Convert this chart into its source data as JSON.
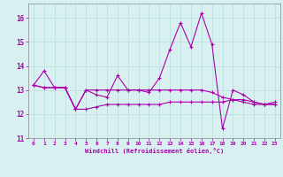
{
  "xlabel": "Windchill (Refroidissement éolien,°C)",
  "background_color": "#d8f0f0",
  "grid_color": "#b8dede",
  "line_color": "#aa00aa",
  "xlim": [
    -0.5,
    23.5
  ],
  "ylim": [
    11,
    16.6
  ],
  "yticks": [
    11,
    12,
    13,
    14,
    15,
    16
  ],
  "xticks": [
    0,
    1,
    2,
    3,
    4,
    5,
    6,
    7,
    8,
    9,
    10,
    11,
    12,
    13,
    14,
    15,
    16,
    17,
    18,
    19,
    20,
    21,
    22,
    23
  ],
  "series1_x": [
    0,
    1,
    2,
    3,
    4,
    5,
    6,
    7,
    8,
    9,
    10,
    11,
    12,
    13,
    14,
    15,
    16,
    17,
    18,
    19,
    20,
    21,
    22,
    23
  ],
  "series1_y": [
    13.2,
    13.8,
    13.1,
    13.1,
    12.2,
    13.0,
    12.8,
    12.7,
    13.6,
    13.0,
    13.0,
    12.9,
    13.5,
    14.7,
    15.8,
    14.8,
    16.2,
    14.9,
    11.4,
    13.0,
    12.8,
    12.5,
    12.4,
    12.5
  ],
  "series2_x": [
    0,
    1,
    2,
    3,
    4,
    5,
    6,
    7,
    8,
    9,
    10,
    11,
    12,
    13,
    14,
    15,
    16,
    17,
    18,
    19,
    20,
    21,
    22,
    23
  ],
  "series2_y": [
    13.2,
    13.1,
    13.1,
    13.1,
    12.2,
    13.0,
    13.0,
    13.0,
    13.0,
    13.0,
    13.0,
    13.0,
    13.0,
    13.0,
    13.0,
    13.0,
    13.0,
    12.9,
    12.7,
    12.6,
    12.5,
    12.4,
    12.4,
    12.4
  ],
  "series3_x": [
    0,
    1,
    2,
    3,
    4,
    5,
    6,
    7,
    8,
    9,
    10,
    11,
    12,
    13,
    14,
    15,
    16,
    17,
    18,
    19,
    20,
    21,
    22,
    23
  ],
  "series3_y": [
    13.2,
    13.1,
    13.1,
    13.1,
    12.2,
    12.2,
    12.3,
    12.4,
    12.4,
    12.4,
    12.4,
    12.4,
    12.4,
    12.5,
    12.5,
    12.5,
    12.5,
    12.5,
    12.5,
    12.6,
    12.6,
    12.5,
    12.4,
    12.4
  ]
}
